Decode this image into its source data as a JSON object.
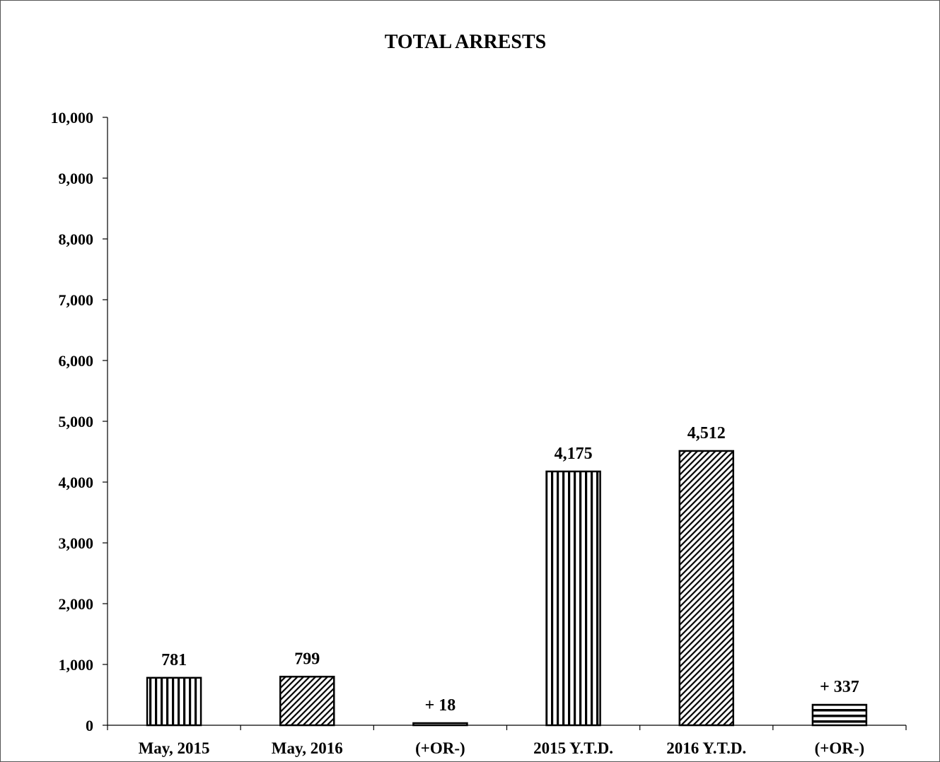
{
  "chart_data": {
    "type": "bar",
    "title": "TOTAL ARRESTS",
    "xlabel": "",
    "ylabel": "",
    "ylim": [
      0,
      10000
    ],
    "y_ticks": [
      0,
      1000,
      2000,
      3000,
      4000,
      5000,
      6000,
      7000,
      8000,
      9000,
      10000
    ],
    "y_tick_labels": [
      "0",
      "1,000",
      "2,000",
      "3,000",
      "4,000",
      "5,000",
      "6,000",
      "7,000",
      "8,000",
      "9,000",
      "10,000"
    ],
    "grid": false,
    "legend": "none",
    "categories": [
      "May, 2015",
      "May, 2016",
      "(+OR-)",
      "2015 Y.T.D.",
      "2016 Y.T.D.",
      "(+OR-)"
    ],
    "values": [
      781,
      799,
      18,
      4175,
      4512,
      337
    ],
    "data_labels": [
      "781",
      "799",
      "+ 18",
      "4,175",
      "4,512",
      "+ 337"
    ],
    "bar_patterns": [
      "vertical-stripes",
      "diagonal-hatch",
      "horizontal-stripes",
      "vertical-stripes",
      "diagonal-hatch",
      "horizontal-stripes"
    ],
    "colors": {
      "bar_fill": "#ffffff",
      "stroke": "#000000",
      "text": "#000000"
    }
  }
}
